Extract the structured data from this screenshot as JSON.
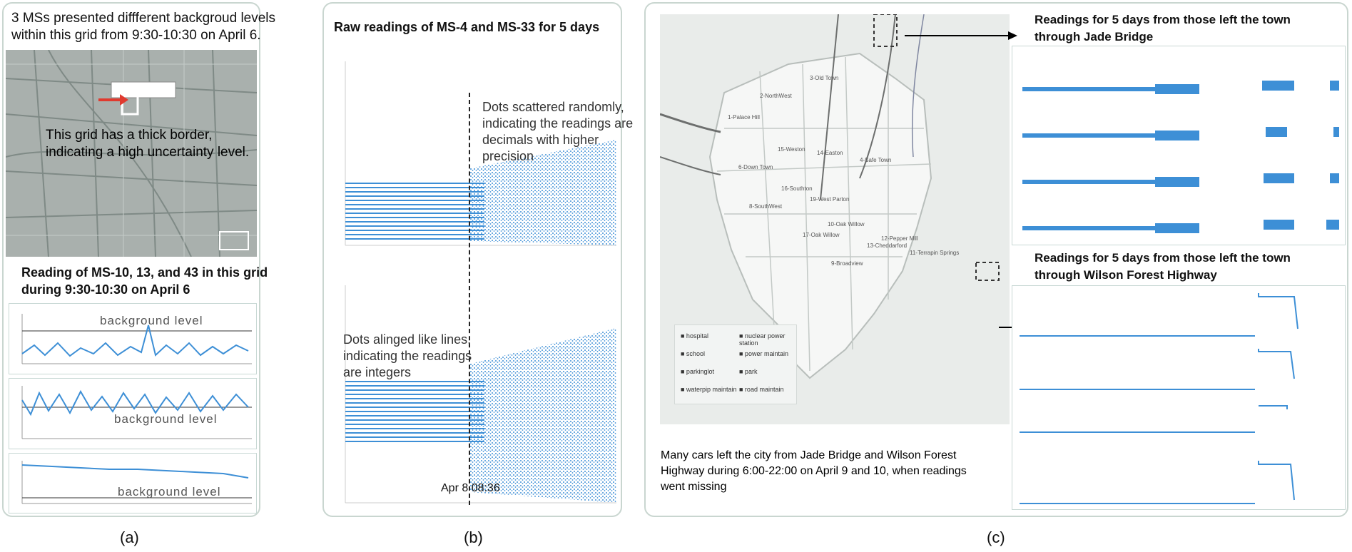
{
  "panel_a": {
    "caption": "(a)",
    "title_line1": "3 MSs presented diffferent backgroud levels",
    "title_line2": "within this grid from 9:30-10:30 on April 6.",
    "map_annotation_line1": "This grid has a thick border,",
    "map_annotation_line2": "indicating a high uncertainty level.",
    "chart_title_line1": "Reading of MS-10, 13, and 43 in this grid",
    "chart_title_line2": "during 9:30-10:30 on April 6",
    "background_label": "background level"
  },
  "panel_b": {
    "caption": "(b)",
    "title": "Raw readings of MS-4 and MS-33 for 5 days",
    "annotation_top_line1": "Dots scattered randomly,",
    "annotation_top_line2": "indicating the readings are",
    "annotation_top_line3": "decimals with higher",
    "annotation_top_line4": "precision",
    "annotation_bottom_line1": "Dots alinged like lines,",
    "annotation_bottom_line2": "indicating the readings",
    "annotation_bottom_line3": "are integers",
    "divider_label": "Apr 8 08:36"
  },
  "panel_c": {
    "caption": "(c)",
    "jade_title_line1": "Readings for 5 days from those left the town",
    "jade_title_line2": "through Jade Bridge",
    "wilson_title_line1": "Readings for 5 days from those left the town",
    "wilson_title_line2": "through Wilson Forest Highway",
    "note_line1": "Many cars left the city from Jade Bridge and Wilson Forest",
    "note_line2": "Highway during 6:00-22:00 on April 9 and 10, when readings",
    "note_line3": "went missing",
    "legend": [
      "hospital",
      "nuclear power station",
      "school",
      "power maintain",
      "parkinglot",
      "park",
      "waterpip maintain",
      "road maintain"
    ],
    "district_labels": [
      "1-Palace Hill",
      "2-NorthWest",
      "3-Old Town",
      "4-Safe Town",
      "6-Down Town",
      "8-SouthWest",
      "9-Broadview",
      "10-Oak Willow",
      "11-Terrapin Springs",
      "12-Pepper Mill",
      "13-Cheddarford",
      "14-Easton",
      "15-Weston",
      "16-Southton",
      "17-Oak Willow",
      "19-West Parton"
    ]
  },
  "colors": {
    "accent_blue": "#3d8fd6",
    "panel_border": "#c9d6d0",
    "map_gray": "#a9b0ad",
    "arrow_red": "#e03a2f"
  }
}
